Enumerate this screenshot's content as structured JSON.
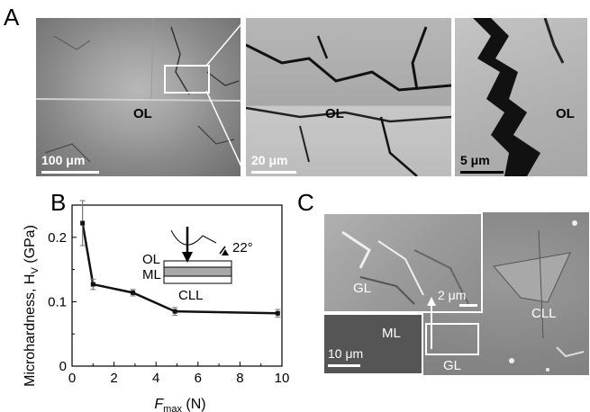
{
  "panel_a": {
    "letter": "A",
    "sub1": {
      "label": "OL",
      "scale": "100 μm"
    },
    "sub2": {
      "label": "OL",
      "scale": "20 μm"
    },
    "sub3": {
      "label": "OL",
      "scale": "5 μm"
    }
  },
  "panel_b": {
    "letter": "B",
    "inset": {
      "ol": "OL",
      "ml": "ML",
      "cll": "CLL",
      "angle": "22°"
    }
  },
  "panel_c": {
    "letter": "C",
    "large": {
      "label": "CLL"
    },
    "inset_top": {
      "label": "GL",
      "scale": "2 μm"
    },
    "inset_bottom": {
      "label_ml": "ML",
      "label_gl": "GL",
      "scale": "10 μm"
    }
  },
  "chart_data": {
    "type": "line",
    "xlabel_main": "F",
    "xlabel_sub": "max",
    "xlabel_unit": " (N)",
    "ylabel": "Microhardness, H",
    "ylabel_sub": "V",
    "ylabel_unit": " (GPa)",
    "xlim": [
      0,
      10
    ],
    "ylim": [
      0,
      0.25
    ],
    "xticks": [
      "0",
      "2",
      "4",
      "6",
      "8",
      "10"
    ],
    "yticks": [
      "0",
      "0.1",
      "0.2"
    ],
    "series": [
      {
        "x": [
          0.5,
          1.0,
          2.9,
          4.9,
          9.8
        ],
        "y": [
          0.222,
          0.127,
          0.114,
          0.085,
          0.082
        ],
        "err": [
          0.035,
          0.008,
          0.005,
          0.006,
          0.006
        ]
      }
    ]
  }
}
